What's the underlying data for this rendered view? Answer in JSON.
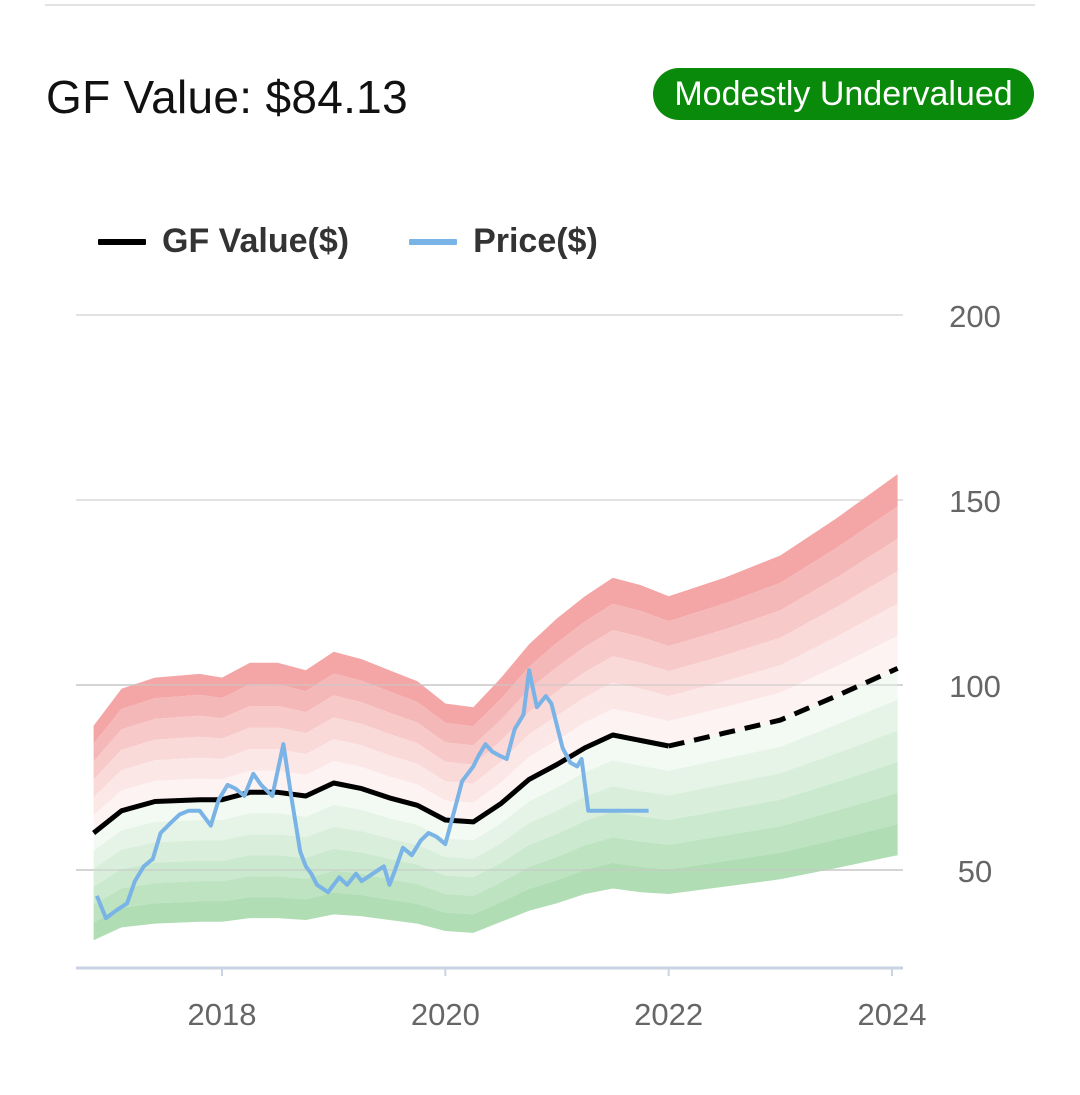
{
  "header": {
    "gf_value_label": "GF Value: $84.13",
    "badge_label": "Modestly Undervalued",
    "badge_color": "#0a8a0a"
  },
  "chart_data": {
    "type": "line",
    "legend": [
      {
        "name": "GF Value($)",
        "color": "#000000"
      },
      {
        "name": "Price($)",
        "color": "#7ab3e6"
      }
    ],
    "xlim": [
      2016.8,
      2024.05
    ],
    "ylim": [
      27,
      200
    ],
    "x_ticks": [
      2018,
      2020,
      2022,
      2024
    ],
    "x_tick_labels": [
      "2018",
      "2020",
      "2022",
      "2024"
    ],
    "y_ticks": [
      50,
      100,
      150,
      200
    ],
    "y_tick_labels": [
      "50",
      "100",
      "150",
      "200"
    ],
    "gridlines": "horizontal",
    "gf_value": {
      "x": [
        2016.85,
        2017.1,
        2017.4,
        2017.8,
        2018.0,
        2018.25,
        2018.5,
        2018.75,
        2019.0,
        2019.25,
        2019.5,
        2019.75,
        2020.0,
        2020.25,
        2020.5,
        2020.75,
        2021.0,
        2021.25,
        2021.5,
        2021.75,
        2022.0
      ],
      "y": [
        60,
        66,
        68.5,
        69,
        69,
        71,
        71,
        70,
        73.5,
        72,
        69.5,
        67.5,
        63.5,
        63,
        68,
        74.5,
        78.5,
        83,
        86.5,
        85,
        83.5
      ]
    },
    "gf_value_projection": {
      "x": [
        2022.0,
        2022.5,
        2023.0,
        2023.5,
        2024.05
      ],
      "y": [
        83.5,
        87,
        90.5,
        97,
        104.5
      ]
    },
    "price": {
      "x": [
        2016.88,
        2016.96,
        2017.05,
        2017.15,
        2017.22,
        2017.3,
        2017.38,
        2017.45,
        2017.55,
        2017.62,
        2017.7,
        2017.8,
        2017.9,
        2017.97,
        2018.05,
        2018.12,
        2018.2,
        2018.28,
        2018.35,
        2018.45,
        2018.55,
        2018.62,
        2018.7,
        2018.75,
        2018.8,
        2018.85,
        2018.95,
        2019.05,
        2019.12,
        2019.2,
        2019.25,
        2019.3,
        2019.35,
        2019.45,
        2019.5,
        2019.55,
        2019.62,
        2019.7,
        2019.78,
        2019.85,
        2019.92,
        2020.0,
        2020.08,
        2020.15,
        2020.25,
        2020.3,
        2020.36,
        2020.42,
        2020.48,
        2020.55,
        2020.62,
        2020.7,
        2020.75,
        2020.82,
        2020.9,
        2020.95,
        2021.0,
        2021.05,
        2021.12,
        2021.18,
        2021.22,
        2021.28,
        2021.35,
        2021.45,
        2021.52,
        2021.6,
        2021.68,
        2021.75,
        2021.78,
        2021.82,
        2021.85
      ],
      "y": [
        43,
        37,
        39,
        41,
        47,
        51,
        53,
        60,
        63,
        65,
        66,
        66,
        62,
        69,
        73,
        72,
        70,
        76,
        73,
        70,
        84,
        70,
        55,
        51,
        49,
        46,
        44,
        48,
        46,
        49,
        47,
        48,
        49,
        51,
        46,
        50,
        56,
        54,
        58,
        60,
        59,
        57,
        66,
        74,
        78,
        81,
        84,
        82,
        81,
        80,
        88,
        92,
        104,
        94,
        97,
        95,
        89,
        83,
        79,
        78,
        80,
        66,
        66,
        66,
        66,
        66,
        66,
        66,
        66,
        66,
        66
      ]
    },
    "band_x": [
      2016.85,
      2017.1,
      2017.4,
      2017.8,
      2018.0,
      2018.25,
      2018.5,
      2018.75,
      2019.0,
      2019.25,
      2019.5,
      2019.75,
      2020.0,
      2020.25,
      2020.5,
      2020.75,
      2021.0,
      2021.25,
      2021.5,
      2021.75,
      2022.0,
      2022.5,
      2023.0,
      2023.5,
      2024.05
    ],
    "band_upper": [
      89,
      99,
      102,
      103,
      102,
      106,
      106,
      104,
      109,
      107,
      104,
      101,
      95,
      94,
      102,
      111,
      118,
      124,
      129,
      127,
      124,
      129,
      135,
      145,
      157
    ],
    "band_lower": [
      31,
      34.5,
      35.5,
      36,
      36,
      37,
      37,
      36.5,
      38,
      37.5,
      36.5,
      35.5,
      33.5,
      33,
      36,
      39,
      41,
      43.5,
      45,
      44,
      43.5,
      45.5,
      47.5,
      50.5,
      54
    ]
  }
}
